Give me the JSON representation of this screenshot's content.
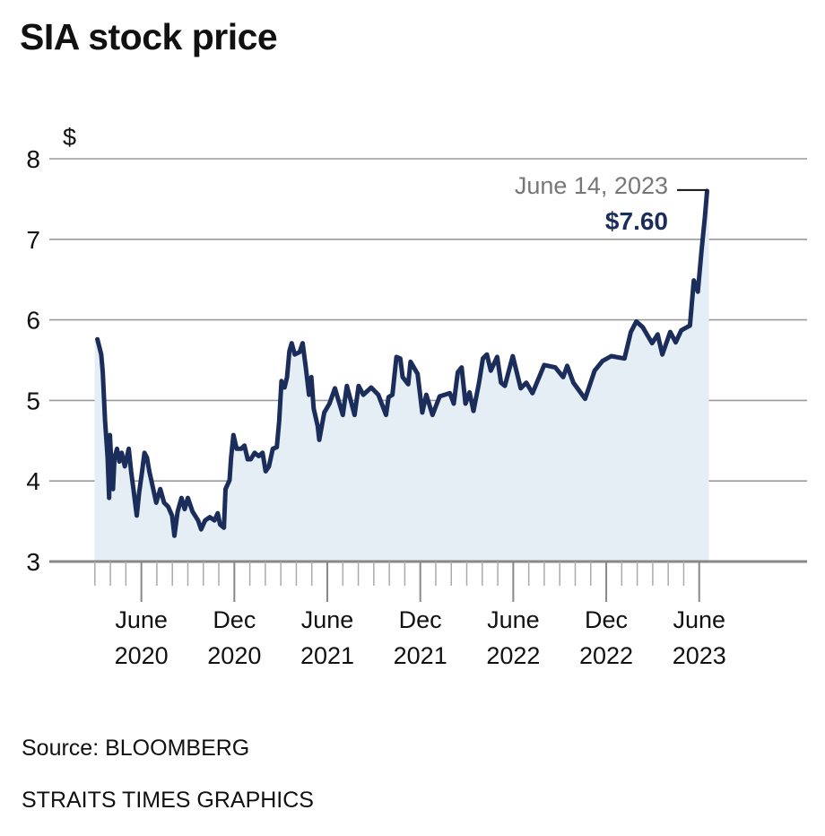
{
  "title": "SIA stock price",
  "source": "Source: BLOOMBERG",
  "credit": "STRAITS TIMES GRAPHICS",
  "colors": {
    "line": "#1b2d5a",
    "fill": "#e6eef5",
    "grid": "#9a9a9a",
    "annotation_date": "#777777"
  },
  "chart_data": {
    "type": "area",
    "title": "SIA stock price",
    "ylabel": "$",
    "xlabel": "",
    "x_units": "months since Jan 2020 (0 = Jan 1 2020)",
    "ylim": [
      3,
      8
    ],
    "yticks": [
      "3",
      "4",
      "5",
      "6",
      "7",
      "8"
    ],
    "xlim": [
      -0.94,
      47.96
    ],
    "xticks_minor_months": [
      2,
      41
    ],
    "xticks": [
      {
        "t": 5,
        "label1": "June",
        "label2": "2020"
      },
      {
        "t": 11,
        "label1": "Dec",
        "label2": "2020"
      },
      {
        "t": 17,
        "label1": "June",
        "label2": "2021"
      },
      {
        "t": 23,
        "label1": "Dec",
        "label2": "2021"
      },
      {
        "t": 29,
        "label1": "June",
        "label2": "2022"
      },
      {
        "t": 35,
        "label1": "Dec",
        "label2": "2022"
      },
      {
        "t": 41,
        "label1": "June",
        "label2": "2023"
      }
    ],
    "grid": true,
    "annotation": {
      "date": "June 14, 2023",
      "value": "$7.60",
      "t": 41.51,
      "y": 7.6
    },
    "series": [
      {
        "name": "SIA",
        "points": [
          [
            2.16,
            5.76
          ],
          [
            2.41,
            5.57
          ],
          [
            2.51,
            5.35
          ],
          [
            2.66,
            4.74
          ],
          [
            2.82,
            4.29
          ],
          [
            2.92,
            3.79
          ],
          [
            2.97,
            4.57
          ],
          [
            3.07,
            4.18
          ],
          [
            3.17,
            3.9
          ],
          [
            3.27,
            4.29
          ],
          [
            3.43,
            4.4
          ],
          [
            3.58,
            4.24
          ],
          [
            3.73,
            4.35
          ],
          [
            3.93,
            4.18
          ],
          [
            4.19,
            4.4
          ],
          [
            4.34,
            4.12
          ],
          [
            4.49,
            3.9
          ],
          [
            4.7,
            3.57
          ],
          [
            4.85,
            3.85
          ],
          [
            5.05,
            4.12
          ],
          [
            5.2,
            4.35
          ],
          [
            5.36,
            4.29
          ],
          [
            5.51,
            4.12
          ],
          [
            5.71,
            3.95
          ],
          [
            5.96,
            3.73
          ],
          [
            6.22,
            3.9
          ],
          [
            6.47,
            3.73
          ],
          [
            6.73,
            3.68
          ],
          [
            6.98,
            3.57
          ],
          [
            7.13,
            3.32
          ],
          [
            7.34,
            3.62
          ],
          [
            7.59,
            3.79
          ],
          [
            7.79,
            3.65
          ],
          [
            8.0,
            3.79
          ],
          [
            8.3,
            3.62
          ],
          [
            8.66,
            3.51
          ],
          [
            8.86,
            3.4
          ],
          [
            9.11,
            3.51
          ],
          [
            9.42,
            3.55
          ],
          [
            9.72,
            3.51
          ],
          [
            9.93,
            3.6
          ],
          [
            10.08,
            3.46
          ],
          [
            10.33,
            3.42
          ],
          [
            10.43,
            3.9
          ],
          [
            10.69,
            4.01
          ],
          [
            10.79,
            4.29
          ],
          [
            10.94,
            4.57
          ],
          [
            11.15,
            4.4
          ],
          [
            11.45,
            4.4
          ],
          [
            11.65,
            4.44
          ],
          [
            11.86,
            4.27
          ],
          [
            12.06,
            4.27
          ],
          [
            12.31,
            4.35
          ],
          [
            12.57,
            4.31
          ],
          [
            12.82,
            4.35
          ],
          [
            13.02,
            4.12
          ],
          [
            13.23,
            4.18
          ],
          [
            13.48,
            4.4
          ],
          [
            13.74,
            4.42
          ],
          [
            13.89,
            4.74
          ],
          [
            14.04,
            5.24
          ],
          [
            14.24,
            5.16
          ],
          [
            14.4,
            5.29
          ],
          [
            14.55,
            5.61
          ],
          [
            14.7,
            5.71
          ],
          [
            14.9,
            5.57
          ],
          [
            15.21,
            5.6
          ],
          [
            15.41,
            5.71
          ],
          [
            15.61,
            5.41
          ],
          [
            15.82,
            5.07
          ],
          [
            15.97,
            5.29
          ],
          [
            16.12,
            4.9
          ],
          [
            16.38,
            4.68
          ],
          [
            16.48,
            4.51
          ],
          [
            16.8,
            4.85
          ],
          [
            17.14,
            4.96
          ],
          [
            17.49,
            5.15
          ],
          [
            18.0,
            4.82
          ],
          [
            18.26,
            5.18
          ],
          [
            18.76,
            4.82
          ],
          [
            19.02,
            5.18
          ],
          [
            19.32,
            5.07
          ],
          [
            19.83,
            5.16
          ],
          [
            20.29,
            5.07
          ],
          [
            20.79,
            4.82
          ],
          [
            20.95,
            5.04
          ],
          [
            21.2,
            5.07
          ],
          [
            21.46,
            5.54
          ],
          [
            21.71,
            5.52
          ],
          [
            21.86,
            5.29
          ],
          [
            22.22,
            5.2
          ],
          [
            22.37,
            5.48
          ],
          [
            22.83,
            5.33
          ],
          [
            23.13,
            4.85
          ],
          [
            23.39,
            5.07
          ],
          [
            23.79,
            4.82
          ],
          [
            24.25,
            5.05
          ],
          [
            24.91,
            5.09
          ],
          [
            25.16,
            4.96
          ],
          [
            25.42,
            5.35
          ],
          [
            25.67,
            5.41
          ],
          [
            25.92,
            4.96
          ],
          [
            26.18,
            5.1
          ],
          [
            26.43,
            4.87
          ],
          [
            26.79,
            5.22
          ],
          [
            27.04,
            5.52
          ],
          [
            27.3,
            5.57
          ],
          [
            27.55,
            5.37
          ],
          [
            27.96,
            5.54
          ],
          [
            28.21,
            5.22
          ],
          [
            28.46,
            5.18
          ],
          [
            28.97,
            5.55
          ],
          [
            29.48,
            5.15
          ],
          [
            29.84,
            5.22
          ],
          [
            30.24,
            5.09
          ],
          [
            31.0,
            5.44
          ],
          [
            31.71,
            5.41
          ],
          [
            32.22,
            5.29
          ],
          [
            32.48,
            5.43
          ],
          [
            32.88,
            5.22
          ],
          [
            33.64,
            5.02
          ],
          [
            34.25,
            5.37
          ],
          [
            34.76,
            5.49
          ],
          [
            35.32,
            5.55
          ],
          [
            36.18,
            5.52
          ],
          [
            36.59,
            5.85
          ],
          [
            36.94,
            5.98
          ],
          [
            37.35,
            5.91
          ],
          [
            37.96,
            5.71
          ],
          [
            38.32,
            5.82
          ],
          [
            38.62,
            5.57
          ],
          [
            39.13,
            5.85
          ],
          [
            39.48,
            5.72
          ],
          [
            39.84,
            5.87
          ],
          [
            40.4,
            5.93
          ],
          [
            40.65,
            6.49
          ],
          [
            40.91,
            6.35
          ],
          [
            41.16,
            6.88
          ],
          [
            41.36,
            7.27
          ],
          [
            41.51,
            7.6
          ]
        ]
      }
    ]
  }
}
